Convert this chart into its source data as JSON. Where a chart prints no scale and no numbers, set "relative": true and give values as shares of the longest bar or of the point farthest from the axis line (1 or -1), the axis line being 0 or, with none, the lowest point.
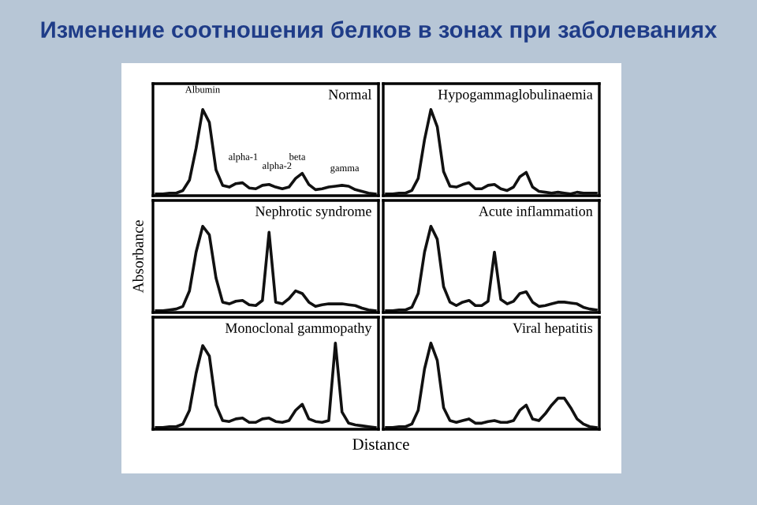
{
  "chart_data": [
    {
      "type": "line",
      "title": "Normal",
      "relative": true,
      "tick_labels": false,
      "color": "#111111",
      "marker": "none",
      "line_style": "solid",
      "annotations": [
        "Изменение соотношения белков в зонах при заболеваниях",
        "Albumin",
        "alpha-1",
        "alpha-2",
        "beta",
        "gamma"
      ],
      "categories": [
        null,
        null,
        null,
        null,
        null,
        null,
        null,
        null,
        null,
        null,
        null,
        null,
        null,
        null,
        null,
        null,
        null,
        null,
        null,
        null,
        null,
        null,
        null,
        null,
        null,
        null,
        null,
        null,
        null,
        null,
        null,
        null,
        null,
        null
      ],
      "values": [
        0.02,
        0.02,
        0.03,
        0.03,
        0.06,
        0.18,
        0.55,
        1.0,
        0.85,
        0.3,
        0.12,
        0.1,
        0.14,
        0.15,
        0.09,
        0.08,
        0.12,
        0.13,
        0.1,
        0.08,
        0.1,
        0.2,
        0.26,
        0.13,
        0.07,
        0.08,
        0.1,
        0.11,
        0.12,
        0.11,
        0.07,
        0.05,
        0.03,
        0.02
      ]
    },
    {
      "type": "line",
      "title": "Hypogammaglobulinaemia",
      "relative": true,
      "tick_labels": false,
      "color": "#111111",
      "marker": "none",
      "line_style": "solid",
      "categories": [
        null,
        null,
        null,
        null,
        null,
        null,
        null,
        null,
        null,
        null,
        null,
        null,
        null,
        null,
        null,
        null,
        null,
        null,
        null,
        null,
        null,
        null,
        null,
        null,
        null,
        null,
        null,
        null,
        null,
        null,
        null,
        null,
        null,
        null
      ],
      "values": [
        0.02,
        0.02,
        0.03,
        0.03,
        0.06,
        0.2,
        0.65,
        1.0,
        0.8,
        0.28,
        0.11,
        0.1,
        0.13,
        0.15,
        0.08,
        0.08,
        0.12,
        0.13,
        0.08,
        0.06,
        0.1,
        0.22,
        0.27,
        0.1,
        0.05,
        0.04,
        0.03,
        0.04,
        0.03,
        0.02,
        0.04,
        0.03,
        0.03,
        0.03
      ]
    },
    {
      "type": "line",
      "title": "Nephrotic syndrome",
      "ylabel": "Absorbance",
      "relative": true,
      "tick_labels": false,
      "color": "#111111",
      "marker": "none",
      "line_style": "solid",
      "categories": [
        null,
        null,
        null,
        null,
        null,
        null,
        null,
        null,
        null,
        null,
        null,
        null,
        null,
        null,
        null,
        null,
        null,
        null,
        null,
        null,
        null,
        null,
        null,
        null,
        null,
        null,
        null,
        null,
        null,
        null,
        null,
        null,
        null,
        null
      ],
      "values": [
        0.02,
        0.02,
        0.03,
        0.04,
        0.07,
        0.25,
        0.7,
        1.0,
        0.9,
        0.4,
        0.12,
        0.1,
        0.13,
        0.14,
        0.09,
        0.08,
        0.14,
        0.93,
        0.12,
        0.1,
        0.16,
        0.25,
        0.22,
        0.12,
        0.07,
        0.09,
        0.1,
        0.1,
        0.1,
        0.09,
        0.08,
        0.05,
        0.03,
        0.02
      ]
    },
    {
      "type": "line",
      "title": "Acute inflammation",
      "relative": true,
      "tick_labels": false,
      "color": "#111111",
      "marker": "none",
      "line_style": "solid",
      "categories": [
        null,
        null,
        null,
        null,
        null,
        null,
        null,
        null,
        null,
        null,
        null,
        null,
        null,
        null,
        null,
        null,
        null,
        null,
        null,
        null,
        null,
        null,
        null,
        null,
        null,
        null,
        null,
        null,
        null,
        null,
        null,
        null,
        null,
        null
      ],
      "values": [
        0.02,
        0.02,
        0.03,
        0.03,
        0.06,
        0.22,
        0.7,
        1.0,
        0.85,
        0.3,
        0.12,
        0.08,
        0.12,
        0.14,
        0.08,
        0.08,
        0.13,
        0.7,
        0.15,
        0.1,
        0.13,
        0.22,
        0.24,
        0.12,
        0.07,
        0.08,
        0.1,
        0.12,
        0.12,
        0.11,
        0.1,
        0.06,
        0.04,
        0.03
      ]
    },
    {
      "type": "line",
      "title": "Monoclonal gammopathy",
      "xlabel": "Distance",
      "relative": true,
      "tick_labels": false,
      "color": "#111111",
      "marker": "none",
      "line_style": "solid",
      "categories": [
        null,
        null,
        null,
        null,
        null,
        null,
        null,
        null,
        null,
        null,
        null,
        null,
        null,
        null,
        null,
        null,
        null,
        null,
        null,
        null,
        null,
        null,
        null,
        null,
        null,
        null,
        null,
        null,
        null,
        null,
        null,
        null,
        null,
        null
      ],
      "values": [
        0.02,
        0.02,
        0.03,
        0.03,
        0.06,
        0.22,
        0.65,
        0.97,
        0.85,
        0.28,
        0.1,
        0.09,
        0.12,
        0.13,
        0.08,
        0.08,
        0.12,
        0.13,
        0.09,
        0.08,
        0.1,
        0.22,
        0.29,
        0.12,
        0.09,
        0.08,
        0.1,
        1.0,
        0.2,
        0.07,
        0.05,
        0.04,
        0.03,
        0.02
      ]
    },
    {
      "type": "line",
      "title": "Viral hepatitis",
      "relative": true,
      "tick_labels": false,
      "color": "#111111",
      "marker": "none",
      "line_style": "solid",
      "categories": [
        null,
        null,
        null,
        null,
        null,
        null,
        null,
        null,
        null,
        null,
        null,
        null,
        null,
        null,
        null,
        null,
        null,
        null,
        null,
        null,
        null,
        null,
        null,
        null,
        null,
        null,
        null,
        null,
        null,
        null,
        null,
        null,
        null,
        null
      ],
      "values": [
        0.02,
        0.02,
        0.03,
        0.03,
        0.06,
        0.22,
        0.7,
        1.0,
        0.8,
        0.25,
        0.1,
        0.08,
        0.1,
        0.12,
        0.07,
        0.07,
        0.09,
        0.1,
        0.08,
        0.08,
        0.1,
        0.22,
        0.28,
        0.12,
        0.1,
        0.18,
        0.28,
        0.36,
        0.36,
        0.25,
        0.12,
        0.06,
        0.03,
        0.02
      ]
    }
  ]
}
